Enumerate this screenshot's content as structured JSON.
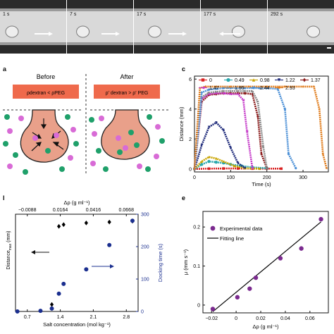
{
  "panel_a": {
    "frames": [
      {
        "time": "1 s",
        "arrow": "right",
        "bubble": 0.1
      },
      {
        "time": "7 s",
        "arrow": "right",
        "bubble": 0.18
      },
      {
        "time": "17 s",
        "arrow": "right",
        "bubble": 0.28
      },
      {
        "time": "177 s",
        "arrow": "left",
        "bubble": 0.62
      },
      {
        "time": "292 s",
        "arrow": "none",
        "bubble": 0.78
      }
    ]
  },
  "panel_b": {
    "label": "a",
    "before_title": "Before",
    "after_title": "After",
    "before_eq": "ρdextran < ρPEG",
    "after_eq": "ρ' dextran > ρ' PEG",
    "colors": {
      "bar": "#ef6a4c",
      "drop": "#e9a08a",
      "pink": "#d86bd6",
      "green": "#1fa06a"
    }
  },
  "panel_c": {
    "label": "c",
    "chart_data": {
      "type": "line",
      "xlabel": "Time (s)",
      "ylabel": "Distance (mm)",
      "xlim": [
        0,
        370
      ],
      "ylim": [
        -0.2,
        6.2
      ],
      "xticks": [
        "0",
        "100",
        "200",
        "300"
      ],
      "yticks": [
        "0",
        "2",
        "4",
        "6"
      ],
      "legend_placement": "top",
      "series": [
        {
          "name": "0",
          "color": "#d92121",
          "marker": "square",
          "x": [
            0,
            40,
            80,
            120,
            160,
            200,
            240
          ],
          "y": [
            0,
            0.02,
            0.03,
            0.03,
            0.02,
            0.02,
            0.02
          ]
        },
        {
          "name": "0.49",
          "color": "#2aa8ad",
          "marker": "circle",
          "x": [
            0,
            20,
            40,
            60,
            80,
            100,
            130,
            160,
            200
          ],
          "y": [
            0,
            0.3,
            0.5,
            0.45,
            0.4,
            0.3,
            0.2,
            0.1,
            0.05
          ]
        },
        {
          "name": "0.98",
          "color": "#c9a400",
          "marker": "triangle",
          "x": [
            0,
            20,
            40,
            60,
            80,
            110,
            140,
            180
          ],
          "y": [
            0,
            0.5,
            0.8,
            0.7,
            0.5,
            0.2,
            0.05,
            0.02
          ]
        },
        {
          "name": "1.22",
          "color": "#1e2a7a",
          "marker": "tri-down",
          "x": [
            0,
            20,
            40,
            60,
            80,
            100,
            120,
            140
          ],
          "y": [
            0,
            1.6,
            2.8,
            3.1,
            2.6,
            1.4,
            0.4,
            0.05
          ]
        },
        {
          "name": "1.37",
          "color": "#8a1a1a",
          "marker": "diamond",
          "x": [
            0,
            20,
            40,
            60,
            80,
            100,
            120,
            140,
            160,
            175,
            185,
            200
          ],
          "y": [
            0,
            4.5,
            4.95,
            5.0,
            5.05,
            5.05,
            5.05,
            5.05,
            5.0,
            3.5,
            1.0,
            0.05
          ]
        },
        {
          "name": "1.47",
          "color": "#c53ac8",
          "marker": "tri-left",
          "x": [
            0,
            20,
            40,
            60,
            80,
            100,
            120,
            135,
            145,
            160
          ],
          "y": [
            0,
            4.7,
            5.0,
            5.05,
            5.05,
            5.0,
            5.0,
            4.6,
            2.5,
            0.05
          ]
        },
        {
          "name": "1.95",
          "color": "#8a8a8a",
          "marker": "tri-right",
          "x": [
            0,
            20,
            40,
            60,
            80,
            100,
            120,
            140,
            160,
            175,
            190,
            200
          ],
          "y": [
            0,
            4.8,
            5.1,
            5.15,
            5.2,
            5.2,
            5.2,
            5.2,
            5.2,
            4.5,
            1.5,
            0.05
          ]
        },
        {
          "name": "2.44",
          "color": "#4a8fd6",
          "marker": "hexagon",
          "x": [
            0,
            20,
            40,
            60,
            80,
            100,
            140,
            180,
            200,
            230,
            250,
            260,
            280
          ],
          "y": [
            0,
            5.1,
            5.3,
            5.35,
            5.4,
            5.4,
            5.4,
            5.4,
            5.4,
            5.35,
            4.0,
            1.0,
            0.05
          ]
        },
        {
          "name": "2.93",
          "color": "#e07b1a",
          "marker": "star",
          "x": [
            0,
            15,
            30,
            60,
            100,
            150,
            200,
            250,
            300,
            330,
            345,
            355,
            365
          ],
          "y": [
            0,
            5.4,
            5.5,
            5.5,
            5.5,
            5.5,
            5.5,
            5.5,
            5.5,
            5.5,
            4.0,
            1.0,
            0.05
          ]
        }
      ]
    }
  },
  "panel_d": {
    "label": "l",
    "chart_data": {
      "type": "scatter",
      "top_axis_label": "Δρ (g ml⁻¹)",
      "top_ticks": [
        "−0.0088",
        "0.0164",
        "0.0416",
        "0.0668"
      ],
      "xlabel": "Salt concentration (mol kg⁻¹)",
      "xticks": [
        "0.7",
        "1.4",
        "2.1",
        "2.8"
      ],
      "xlim": [
        0.45,
        3.05
      ],
      "ylabel": "Distance",
      "ylabel_sub": "max",
      "ylabel_unit": "(mm)",
      "ylim": [
        0,
        5.6
      ],
      "y2label": "Docking time (s)",
      "y2ticks": [
        "0",
        "100",
        "200",
        "300"
      ],
      "y2lim": [
        0,
        300
      ],
      "series": [
        {
          "name": "Distance max",
          "color": "#000000",
          "marker": "diamond",
          "axis": "left",
          "x": [
            1.22,
            1.37,
            1.47,
            1.95,
            2.44,
            2.93
          ],
          "y": [
            0.4,
            4.9,
            5.0,
            5.1,
            5.15,
            5.2
          ]
        },
        {
          "name": "Docking time",
          "color": "#1b2f8f",
          "marker": "circle",
          "axis": "right",
          "x": [
            0.49,
            0.98,
            1.22,
            1.37,
            1.47,
            1.95,
            2.44,
            2.93
          ],
          "y": [
            0,
            2,
            9,
            55,
            85,
            130,
            205,
            280
          ]
        }
      ]
    }
  },
  "panel_e": {
    "label": "e",
    "chart_data": {
      "type": "scatter",
      "xlabel": "Δρ (g ml⁻¹)",
      "ylabel": "μ (mm s⁻¹)",
      "xticks": [
        "−0.02",
        "0",
        "0.02",
        "0.04",
        "0.06"
      ],
      "xlim": [
        -0.027,
        0.075
      ],
      "yticks": [
        "0",
        "0.1",
        "0.2"
      ],
      "ylim": [
        -0.02,
        0.24
      ],
      "legend_placement": "top-left",
      "series": [
        {
          "name": "Experimental data",
          "color": "#7b2a8f",
          "marker": "circle",
          "x": [
            -0.019,
            0.001,
            0.011,
            0.016,
            0.036,
            0.053,
            0.069
          ],
          "y": [
            -0.01,
            0.02,
            0.042,
            0.07,
            0.12,
            0.145,
            0.22
          ]
        },
        {
          "name": "Fitting line",
          "color": "#000000",
          "type": "line",
          "x": [
            -0.019,
            0.069
          ],
          "y": [
            -0.017,
            0.213
          ]
        }
      ]
    }
  }
}
